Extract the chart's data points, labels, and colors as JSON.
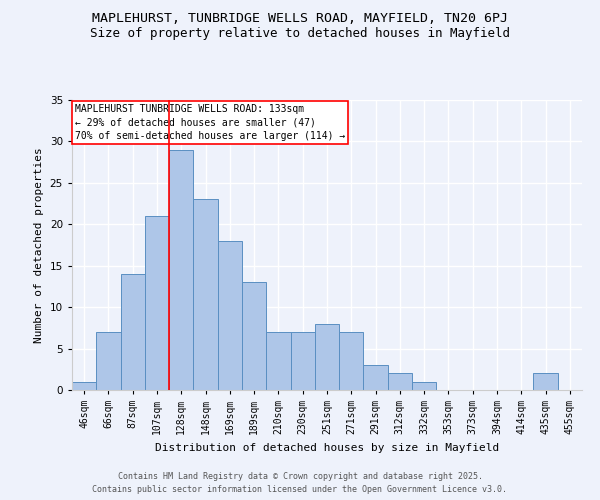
{
  "title1": "MAPLEHURST, TUNBRIDGE WELLS ROAD, MAYFIELD, TN20 6PJ",
  "title2": "Size of property relative to detached houses in Mayfield",
  "xlabel": "Distribution of detached houses by size in Mayfield",
  "ylabel": "Number of detached properties",
  "categories": [
    "46sqm",
    "66sqm",
    "87sqm",
    "107sqm",
    "128sqm",
    "148sqm",
    "169sqm",
    "189sqm",
    "210sqm",
    "230sqm",
    "251sqm",
    "271sqm",
    "291sqm",
    "312sqm",
    "332sqm",
    "353sqm",
    "373sqm",
    "394sqm",
    "414sqm",
    "435sqm",
    "455sqm"
  ],
  "values": [
    1,
    7,
    14,
    21,
    29,
    23,
    18,
    13,
    7,
    7,
    8,
    7,
    3,
    2,
    1,
    0,
    0,
    0,
    0,
    2,
    0
  ],
  "bar_color": "#aec6e8",
  "bar_edge_color": "#5a8fc2",
  "vline_x_index": 4,
  "vline_color": "red",
  "ylim": [
    0,
    35
  ],
  "yticks": [
    0,
    5,
    10,
    15,
    20,
    25,
    30,
    35
  ],
  "annotation_title": "MAPLEHURST TUNBRIDGE WELLS ROAD: 133sqm",
  "annotation_line1": "← 29% of detached houses are smaller (47)",
  "annotation_line2": "70% of semi-detached houses are larger (114) →",
  "annotation_box_color": "white",
  "annotation_box_edge_color": "red",
  "footer1": "Contains HM Land Registry data © Crown copyright and database right 2025.",
  "footer2": "Contains public sector information licensed under the Open Government Licence v3.0.",
  "background_color": "#eef2fb",
  "grid_color": "#ffffff",
  "title_fontsize": 9.5,
  "subtitle_fontsize": 9,
  "tick_fontsize": 7,
  "ylabel_fontsize": 8,
  "xlabel_fontsize": 8,
  "annotation_fontsize": 7,
  "footer_fontsize": 6
}
